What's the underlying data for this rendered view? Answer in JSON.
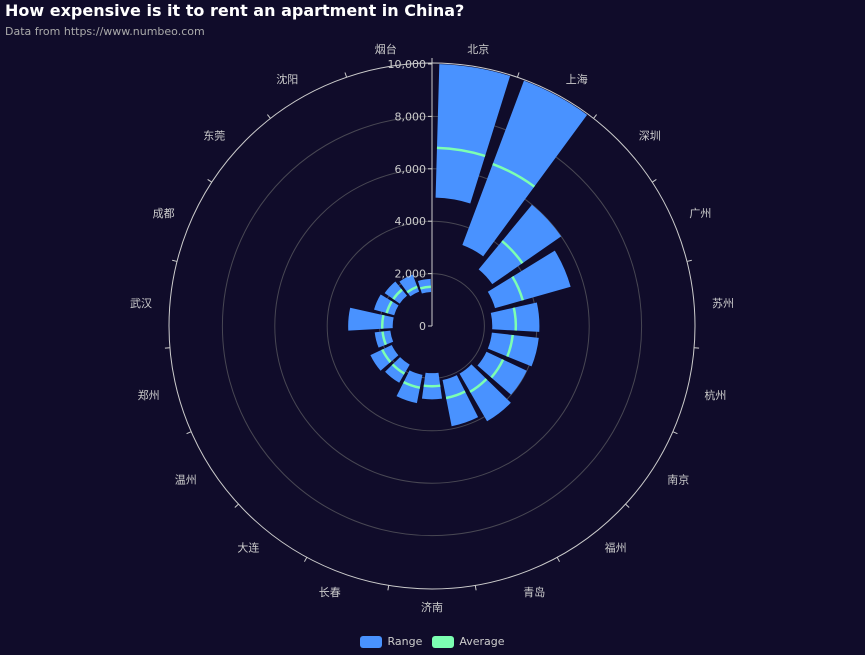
{
  "title": "How expensive is it to rent an apartment in China?",
  "subtitle": "Data from https://www.numbeo.com",
  "colors": {
    "background": "#100c2a",
    "range": "#4992ff",
    "average": "#7cffb2",
    "axis": "#cccccc",
    "grid": "#484753"
  },
  "legend": [
    {
      "label": "Range",
      "color": "#4992ff"
    },
    {
      "label": "Average",
      "color": "#7cffb2"
    }
  ],
  "chart_data": {
    "type": "polar-bar",
    "title": "How expensive is it to rent an apartment in China?",
    "subtitle": "Data from https://www.numbeo.com",
    "radius_axis": {
      "min": 0,
      "max": 10000,
      "ticks": [
        "0",
        "2,000",
        "4,000",
        "6,000",
        "8,000",
        "10,000"
      ]
    },
    "categories": [
      "北京",
      "上海",
      "深圳",
      "广州",
      "苏州",
      "杭州",
      "南京",
      "福州",
      "青岛",
      "济南",
      "长春",
      "大连",
      "温州",
      "郑州",
      "武汉",
      "成都",
      "东莞",
      "沈阳",
      "烟台"
    ],
    "series": [
      {
        "name": "Range",
        "type": "stacked-bar",
        "min": [
          4900,
          3300,
          2800,
          2500,
          2300,
          2300,
          2300,
          2100,
          2100,
          1800,
          1900,
          1700,
          1700,
          1600,
          1500,
          1500,
          1500,
          1400,
          1300
        ],
        "max": [
          10000,
          10000,
          6000,
          5500,
          4100,
          4100,
          4000,
          4200,
          3900,
          2800,
          3000,
          2500,
          2600,
          2200,
          3200,
          2300,
          2200,
          2100,
          1800
        ]
      },
      {
        "name": "Average",
        "type": "marker",
        "values": [
          6800,
          6600,
          4200,
          3600,
          3200,
          3100,
          3000,
          2900,
          2800,
          2300,
          2400,
          2100,
          2100,
          1900,
          1900,
          1800,
          1800,
          1600,
          1500
        ]
      }
    ],
    "legend_position": "bottom-center",
    "grid": true
  }
}
